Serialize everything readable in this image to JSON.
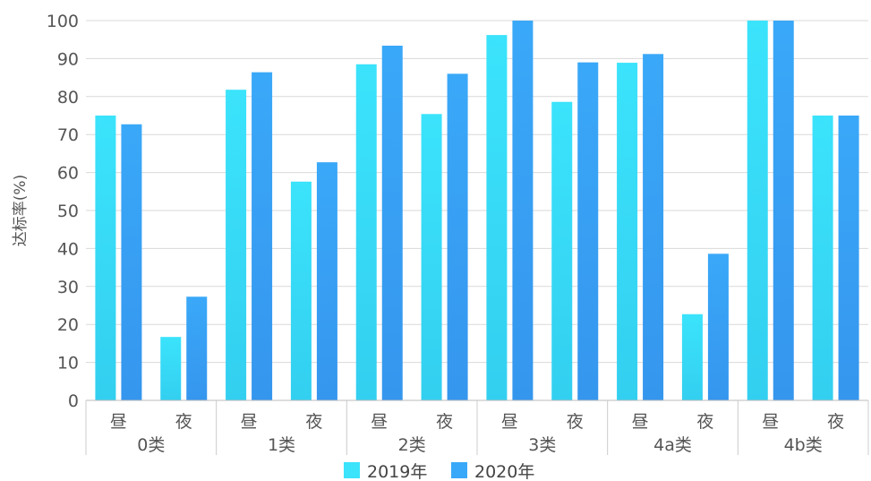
{
  "chart_data": {
    "type": "bar",
    "title": "",
    "ylabel": "达标率(%)",
    "xlabel": "",
    "ylim": [
      0,
      100
    ],
    "yticks": [
      0,
      10,
      20,
      30,
      40,
      50,
      60,
      70,
      80,
      90,
      100
    ],
    "groups": [
      {
        "label": "0类",
        "subcategories": [
          "昼",
          "夜"
        ]
      },
      {
        "label": "1类",
        "subcategories": [
          "昼",
          "夜"
        ]
      },
      {
        "label": "2类",
        "subcategories": [
          "昼",
          "夜"
        ]
      },
      {
        "label": "3类",
        "subcategories": [
          "昼",
          "夜"
        ]
      },
      {
        "label": "4a类",
        "subcategories": [
          "昼",
          "夜"
        ]
      },
      {
        "label": "4b类",
        "subcategories": [
          "昼",
          "夜"
        ]
      }
    ],
    "series": [
      {
        "name": "2019年",
        "color_top": "#3BE3FB",
        "color_bottom": "#33CFF0",
        "values": [
          75,
          16.7,
          81.8,
          57.6,
          88.5,
          75.4,
          96.2,
          78.6,
          88.9,
          22.7,
          100,
          75
        ]
      },
      {
        "name": "2020年",
        "color_top": "#3AA8F8",
        "color_bottom": "#3596EE",
        "values": [
          72.7,
          27.3,
          86.4,
          62.7,
          93.4,
          86,
          100,
          89,
          91.2,
          38.6,
          100,
          75
        ]
      }
    ],
    "grid": true,
    "legend_position": "bottom-center"
  }
}
